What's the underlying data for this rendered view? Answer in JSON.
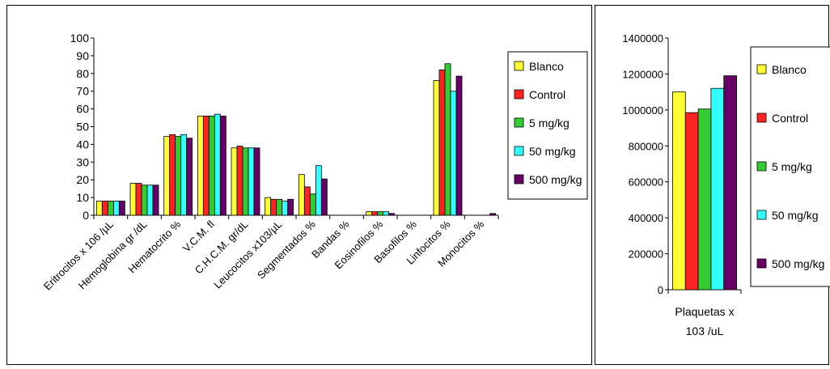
{
  "colors": {
    "series": [
      "#ffff33",
      "#ff2222",
      "#33cc33",
      "#33ffff",
      "#660066"
    ],
    "axis": "#000000",
    "background": "#ffffff"
  },
  "chart_data": [
    {
      "type": "bar",
      "title": "",
      "xlabel": "",
      "ylabel": "",
      "ylim": [
        0,
        100
      ],
      "yticks": [
        0,
        10,
        20,
        30,
        40,
        50,
        60,
        70,
        80,
        90,
        100
      ],
      "grid": false,
      "legend": "right",
      "categories": [
        "Eritrocitos x 106 /µL",
        "Hemoglobina gr /dL",
        "Hematocrito %",
        "V.C.M. fl",
        "C.H.C.M. gr/dL",
        "Leucocitos x103/µL",
        "Segmentados %",
        "Bandas %",
        "Eosinofilos %",
        "Basofilos %",
        "Linfocitos %",
        "Monocitos %"
      ],
      "series": [
        {
          "name": "Blanco",
          "values": [
            8,
            18,
            44.5,
            56,
            38,
            10,
            23,
            0,
            2,
            0,
            76,
            0
          ]
        },
        {
          "name": "Control",
          "values": [
            8,
            18,
            45.5,
            56,
            39,
            9,
            16,
            0,
            2,
            0,
            82,
            0
          ]
        },
        {
          "name": "5 mg/kg",
          "values": [
            8,
            17,
            44.5,
            56,
            38,
            9,
            12,
            0,
            2,
            0,
            85.5,
            0
          ]
        },
        {
          "name": "50 mg/kg",
          "values": [
            8,
            17,
            45.5,
            57,
            38,
            8,
            28,
            0,
            2,
            0,
            70,
            0
          ]
        },
        {
          "name": "500 mg/kg",
          "values": [
            8,
            17,
            43.5,
            56,
            38,
            9,
            20.5,
            0,
            1,
            0,
            78.5,
            1
          ]
        }
      ]
    },
    {
      "type": "bar",
      "title": "",
      "xlabel": "",
      "ylabel": "",
      "ylim": [
        0,
        1400000
      ],
      "yticks": [
        0,
        200000,
        400000,
        600000,
        800000,
        1000000,
        1200000,
        1400000
      ],
      "grid": false,
      "legend": "right",
      "categories": [
        "Plaquetas x 103 /uL"
      ],
      "category_lines": [
        "Plaquetas x",
        "103 /uL"
      ],
      "series": [
        {
          "name": "Blanco",
          "values": [
            1100000
          ]
        },
        {
          "name": "Control",
          "values": [
            985000
          ]
        },
        {
          "name": "5 mg/kg",
          "values": [
            1005000
          ]
        },
        {
          "name": "50 mg/kg",
          "values": [
            1120000
          ]
        },
        {
          "name": "500 mg/kg",
          "values": [
            1190000
          ]
        }
      ]
    }
  ]
}
